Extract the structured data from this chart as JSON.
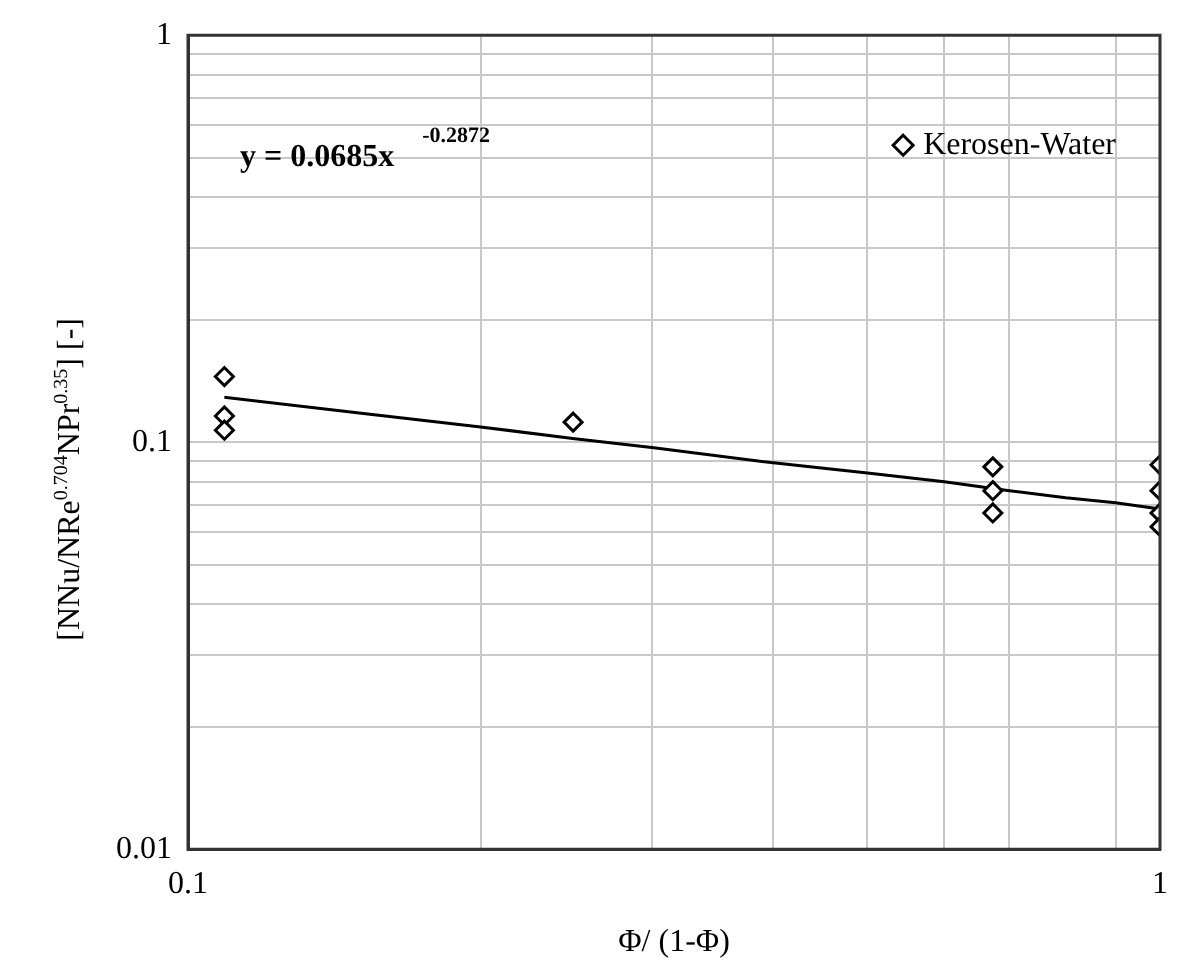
{
  "chart_data": {
    "type": "scatter",
    "xlabel": "Φ/ (1-Φ)",
    "ylabel": "[NNu/NRe$^{0.704}$NPr$^{0.35}$] [-]",
    "annotations": [
      "y = 0.0685x$^{-0.2872}$"
    ],
    "series": [
      {
        "name": "Kerosen-Water",
        "color": "#000000",
        "marker": "diamond",
        "x": [
          0.109,
          0.109,
          0.109,
          0.249,
          0.673,
          0.673,
          0.673,
          1,
          1,
          1,
          1
        ],
        "values": [
          0.145,
          0.116,
          0.107,
          0.112,
          0.087,
          0.076,
          0.067,
          0.088,
          0.076,
          0.067,
          0.062
        ]
      },
      {
        "type": "line",
        "color": "#000000",
        "marker": "none",
        "x": [
          0.109,
          0.15,
          0.2,
          0.25,
          0.3,
          0.4,
          0.5,
          0.6,
          0.7,
          0.8,
          0.9,
          1
        ],
        "values": [
          0.129,
          0.118,
          0.109,
          0.102,
          0.097,
          0.089,
          0.084,
          0.08,
          0.076,
          0.073,
          0.071,
          0.0685
        ]
      }
    ],
    "log": "xy",
    "xlim": [
      0.1,
      1
    ],
    "ylim": [
      0.01,
      1
    ],
    "xticks": [
      0.1,
      {
        "value": 0.2,
        "label": null
      },
      {
        "value": 0.3,
        "label": null
      },
      {
        "value": 0.4,
        "label": null
      },
      {
        "value": 0.5,
        "label": null
      },
      {
        "value": 0.6,
        "label": null
      },
      {
        "value": 0.7,
        "label": null
      },
      {
        "value": 0.9,
        "label": null
      },
      1
    ],
    "yticks": [
      0.01,
      {
        "value": 0.02,
        "label": null
      },
      {
        "value": 0.03,
        "label": null
      },
      {
        "value": 0.04,
        "label": null
      },
      {
        "value": 0.05,
        "label": null
      },
      {
        "value": 0.06,
        "label": null
      },
      {
        "value": 0.07,
        "label": null
      },
      {
        "value": 0.08,
        "label": null
      },
      {
        "value": 0.09,
        "label": null
      },
      0.1,
      {
        "value": 0.2,
        "label": null
      },
      {
        "value": 0.3,
        "label": null
      },
      {
        "value": 0.4,
        "label": null
      },
      {
        "value": 0.5,
        "label": null
      },
      {
        "value": 0.6,
        "label": null
      },
      {
        "value": 0.7,
        "label": null
      },
      {
        "value": 0.8,
        "label": null
      },
      {
        "value": 0.9,
        "label": null
      },
      1
    ],
    "grid": true,
    "legend": "top right"
  }
}
